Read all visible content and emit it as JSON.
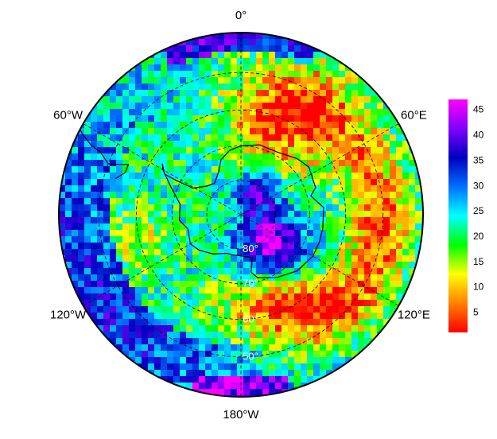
{
  "map": {
    "projection": "south-polar-stereographic",
    "boundary_latitude": -40,
    "meridian_labels": [
      {
        "text": "0°",
        "lon": 0
      },
      {
        "text": "60°E",
        "lon": 60
      },
      {
        "text": "120°E",
        "lon": 120
      },
      {
        "text": "180°W",
        "lon": 180
      },
      {
        "text": "120°W",
        "lon": -120
      },
      {
        "text": "60°W",
        "lon": -60
      }
    ],
    "parallel_labels": [
      {
        "text": "80°",
        "lat": -80
      },
      {
        "text": "70°",
        "lat": -70
      },
      {
        "text": "60°",
        "lat": -60
      },
      {
        "text": "50°",
        "lat": -50
      }
    ],
    "graticule": {
      "style": "dashed",
      "parallels": [
        -80,
        -70,
        -60,
        -50
      ],
      "meridians_step": 60
    }
  },
  "colorbar": {
    "min": 1,
    "max": 47,
    "ticks": [
      "5",
      "10",
      "15",
      "20",
      "25",
      "30",
      "35",
      "40",
      "45"
    ],
    "colormap": [
      "#ff0000",
      "#ff8000",
      "#ffff00",
      "#00ff00",
      "#00ffff",
      "#0070ff",
      "#0000c0",
      "#8000ff",
      "#ff00ff"
    ]
  },
  "colors": {
    "coastline": "#000000",
    "frame": "#000000",
    "grid": "#000000"
  }
}
